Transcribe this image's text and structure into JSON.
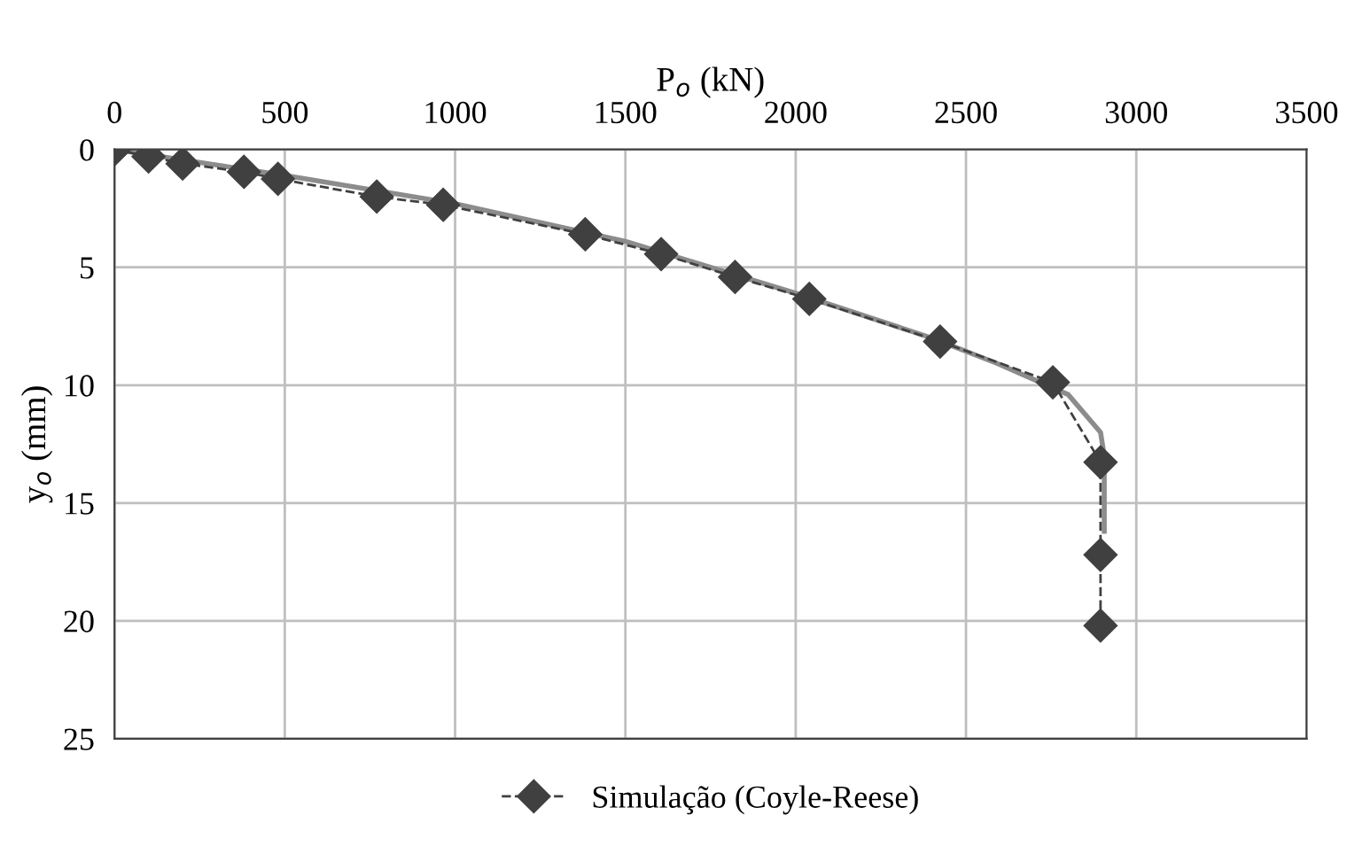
{
  "chart_data": {
    "type": "line",
    "xlabel": "P$_{o}$ (kN)",
    "ylabel": "y$_{o}$ (mm)",
    "xlim": [
      0,
      3500
    ],
    "xticks": [
      0,
      500,
      1000,
      1500,
      2000,
      2500,
      3000,
      3500
    ],
    "ylim": [
      25,
      0
    ],
    "yticks": [
      0,
      5,
      10,
      15,
      20,
      25
    ],
    "grid": true,
    "legend": "bottom",
    "series": [
      {
        "name": "Simulação (Coyle-Reese)",
        "color": "#404040",
        "marker": "diamond",
        "line_style": "dashed",
        "x": [
          0,
          100,
          200,
          380,
          480,
          770,
          965,
          1382,
          1605,
          1822,
          2040,
          2424,
          2755,
          2895,
          2895,
          2895
        ],
        "values": [
          0,
          0.3,
          0.6,
          0.95,
          1.25,
          2.0,
          2.35,
          3.6,
          4.44,
          5.41,
          6.34,
          8.15,
          9.88,
          13.27,
          17.2,
          20.2
        ]
      },
      {
        "color": "#8c8c8c",
        "marker": "none",
        "line_style": "solid",
        "x": [
          0,
          500,
          1000,
          1500,
          2000,
          2400,
          2590,
          2800,
          2895,
          2906,
          2906
        ],
        "values": [
          0,
          1.1,
          2.3,
          3.9,
          6.1,
          8.0,
          9.07,
          10.4,
          12.0,
          13.0,
          16.2
        ]
      }
    ]
  }
}
